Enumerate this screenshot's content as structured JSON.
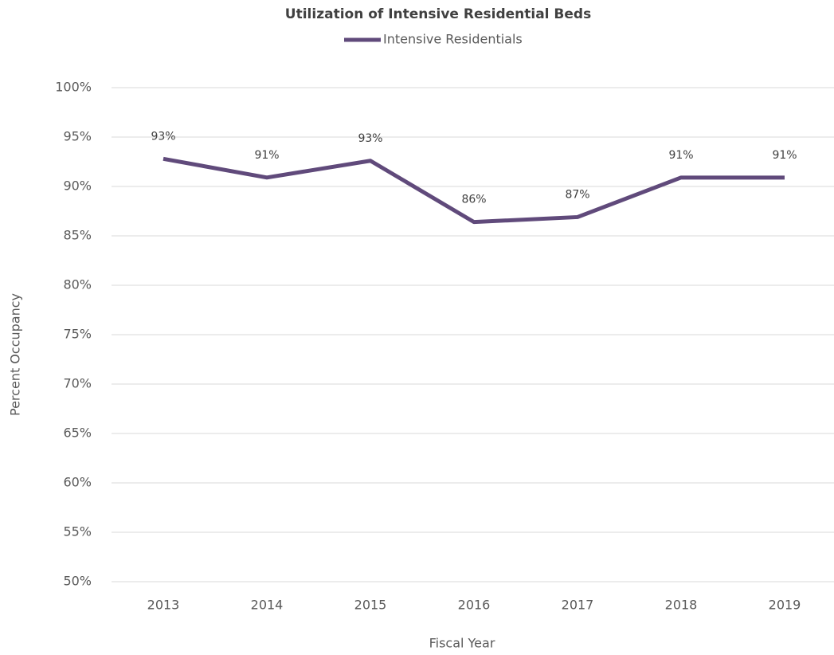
{
  "chart_data": {
    "type": "line",
    "title": "Utilization of Intensive Residential Beds",
    "x_label": "Fiscal Year",
    "y_label": "Percent Occupancy",
    "categories": [
      "2013",
      "2014",
      "2015",
      "2016",
      "2017",
      "2018",
      "2019"
    ],
    "series": [
      {
        "name": "Intensive Residentials",
        "color": "#604a7b",
        "values": [
          92.8,
          90.9,
          92.6,
          86.4,
          86.9,
          90.9,
          90.9
        ],
        "value_labels": [
          "93%",
          "91%",
          "93%",
          "86%",
          "87%",
          "91%",
          "91%"
        ]
      }
    ],
    "ylim": [
      50,
      100
    ],
    "yticks": [
      {
        "value": 50,
        "label": "50%"
      },
      {
        "value": 55,
        "label": "55%"
      },
      {
        "value": 60,
        "label": "60%"
      },
      {
        "value": 65,
        "label": "65%"
      },
      {
        "value": 70,
        "label": "70%"
      },
      {
        "value": 75,
        "label": "75%"
      },
      {
        "value": 80,
        "label": "80%"
      },
      {
        "value": 85,
        "label": "85%"
      },
      {
        "value": 90,
        "label": "90%"
      },
      {
        "value": 95,
        "label": "95%"
      },
      {
        "value": 100,
        "label": "100%"
      }
    ],
    "grid": true,
    "legend": "top"
  }
}
